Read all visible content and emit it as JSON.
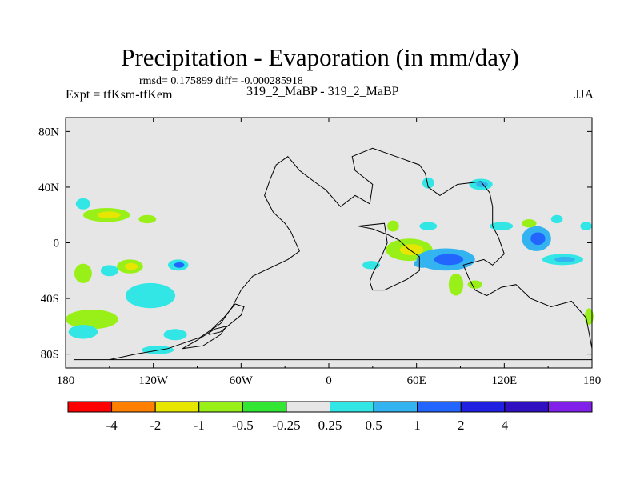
{
  "chart_data": {
    "type": "heatmap",
    "title": "Precipitation - Evaporation (in mm/day)",
    "stats_line": "rmsd= 0.175899 diff= -0.000285918",
    "left_label": "Expt = tfKsm-tfKem",
    "subtitle": "319_2_MaBP - 319_2_MaBP",
    "season": "JJA",
    "xlim": [
      -180,
      180
    ],
    "ylim": [
      -90,
      90
    ],
    "x_ticks": [
      {
        "value": -180,
        "label": "180"
      },
      {
        "value": -120,
        "label": "120W"
      },
      {
        "value": -60,
        "label": "60W"
      },
      {
        "value": 0,
        "label": "0"
      },
      {
        "value": 60,
        "label": "60E"
      },
      {
        "value": 120,
        "label": "120E"
      },
      {
        "value": 180,
        "label": "180"
      }
    ],
    "y_ticks": [
      {
        "value": 80,
        "label": "80N"
      },
      {
        "value": 40,
        "label": "40N"
      },
      {
        "value": 0,
        "label": "0"
      },
      {
        "value": -40,
        "label": "40S"
      },
      {
        "value": -80,
        "label": "80S"
      }
    ],
    "colorbar": {
      "colors": [
        "#ff0000",
        "#ff8000",
        "#e6e600",
        "#99f019",
        "#33e633",
        "#e6e6e6",
        "#33e6e6",
        "#33b3f0",
        "#2266ff",
        "#2020e0",
        "#3010c0",
        "#8020e8"
      ],
      "labels": [
        "-4",
        "-2",
        "-1",
        "-0.5",
        "-0.25",
        "0.25",
        "0.5",
        "1",
        "2",
        "4"
      ]
    },
    "fields": [
      {
        "lon": -152,
        "lat": 20,
        "rx": 16,
        "ry": 5,
        "level": -0.5,
        "core": -1
      },
      {
        "lon": -124,
        "lat": 17,
        "rx": 6,
        "ry": 3,
        "level": -0.5
      },
      {
        "lon": -168,
        "lat": 28,
        "rx": 5,
        "ry": 4,
        "level": 0.25
      },
      {
        "lon": -168,
        "lat": -22,
        "rx": 6,
        "ry": 7,
        "level": -0.5
      },
      {
        "lon": -136,
        "lat": -17,
        "rx": 9,
        "ry": 5,
        "level": -0.5,
        "core": -1
      },
      {
        "lon": -103,
        "lat": -16,
        "rx": 7,
        "ry": 4,
        "level": 0.25,
        "core": 1
      },
      {
        "lon": -122,
        "lat": -38,
        "rx": 17,
        "ry": 9,
        "level": 0.25
      },
      {
        "lon": -150,
        "lat": -20,
        "rx": 6,
        "ry": 4,
        "level": 0.25
      },
      {
        "lon": -162,
        "lat": -55,
        "rx": 18,
        "ry": 7,
        "level": -0.5
      },
      {
        "lon": -168,
        "lat": -64,
        "rx": 10,
        "ry": 5,
        "level": 0.25
      },
      {
        "lon": -117,
        "lat": -77,
        "rx": 11,
        "ry": 3,
        "level": 0.25
      },
      {
        "lon": -105,
        "lat": -66,
        "rx": 8,
        "ry": 4,
        "level": 0.25
      },
      {
        "lon": 55,
        "lat": -5,
        "rx": 16,
        "ry": 8,
        "level": -0.5,
        "core": -1
      },
      {
        "lon": 80,
        "lat": -12,
        "rx": 20,
        "ry": 8,
        "level": 0.5,
        "core": 1
      },
      {
        "lon": 64,
        "lat": -15,
        "rx": 6,
        "ry": 3,
        "level": 0.5
      },
      {
        "lon": 104,
        "lat": 42,
        "rx": 8,
        "ry": 4,
        "level": 0.25,
        "core": 0.5
      },
      {
        "lon": 68,
        "lat": 43,
        "rx": 4,
        "ry": 4,
        "level": 0.25
      },
      {
        "lon": 142,
        "lat": 3,
        "rx": 10,
        "ry": 9,
        "level": 0.5,
        "core": 1
      },
      {
        "lon": 137,
        "lat": 14,
        "rx": 5,
        "ry": 3,
        "level": -0.5
      },
      {
        "lon": 160,
        "lat": -12,
        "rx": 14,
        "ry": 4,
        "level": 0.25,
        "core": 0.5
      },
      {
        "lon": 87,
        "lat": -30,
        "rx": 5,
        "ry": 8,
        "level": -0.5
      },
      {
        "lon": 68,
        "lat": 12,
        "rx": 6,
        "ry": 3,
        "level": 0.25
      },
      {
        "lon": 118,
        "lat": 12,
        "rx": 8,
        "ry": 3,
        "level": 0.25
      },
      {
        "lon": 156,
        "lat": 17,
        "rx": 4,
        "ry": 3,
        "level": 0.25
      },
      {
        "lon": 176,
        "lat": 12,
        "rx": 4,
        "ry": 3,
        "level": 0.25
      },
      {
        "lon": 178,
        "lat": -53,
        "rx": 3,
        "ry": 6,
        "level": -0.5
      },
      {
        "lon": 29,
        "lat": -16,
        "rx": 6,
        "ry": 3,
        "level": 0.25
      },
      {
        "lon": 44,
        "lat": 12,
        "rx": 4,
        "ry": 4,
        "level": -0.5
      },
      {
        "lon": 100,
        "lat": -30,
        "rx": 5,
        "ry": 3,
        "level": -0.5
      }
    ]
  }
}
